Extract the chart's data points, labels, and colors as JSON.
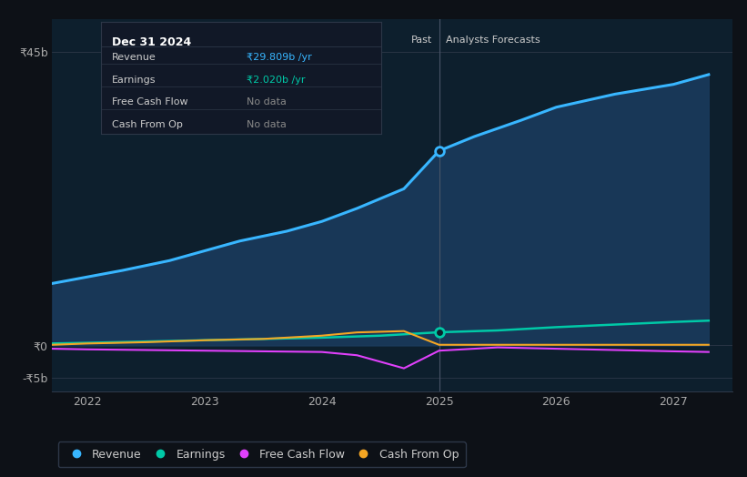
{
  "bg_color": "#0d1117",
  "plot_bg_color": "#0d1f2d",
  "divider_x": 2025.0,
  "past_label": "Past",
  "forecast_label": "Analysts Forecasts",
  "yticks": [
    45,
    0,
    -5
  ],
  "ytick_labels": [
    "₹45b",
    "₹0",
    "-₹5b"
  ],
  "ylim": [
    -7,
    50
  ],
  "xlim": [
    2021.7,
    2027.5
  ],
  "xticks": [
    2022,
    2023,
    2024,
    2025,
    2026,
    2027
  ],
  "revenue": {
    "x": [
      2021.7,
      2022.0,
      2022.3,
      2022.7,
      2023.0,
      2023.3,
      2023.7,
      2024.0,
      2024.3,
      2024.7,
      2025.0,
      2025.3,
      2025.7,
      2026.0,
      2026.5,
      2027.0,
      2027.3
    ],
    "y": [
      9.5,
      10.5,
      11.5,
      13.0,
      14.5,
      16.0,
      17.5,
      19.0,
      21.0,
      24.0,
      29.809,
      32.0,
      34.5,
      36.5,
      38.5,
      40.0,
      41.5
    ],
    "color": "#38b6ff",
    "fill_color": "#1a3a5c",
    "fill_alpha": 0.9,
    "linewidth": 2.2,
    "label": "Revenue",
    "dot_x": 2025.0,
    "dot_y": 29.809
  },
  "earnings": {
    "x": [
      2021.7,
      2022.0,
      2022.5,
      2023.0,
      2023.5,
      2024.0,
      2024.5,
      2025.0,
      2025.5,
      2026.0,
      2026.5,
      2027.0,
      2027.3
    ],
    "y": [
      0.3,
      0.4,
      0.6,
      0.8,
      1.0,
      1.2,
      1.5,
      2.02,
      2.3,
      2.8,
      3.2,
      3.6,
      3.8
    ],
    "color": "#00c9a7",
    "linewidth": 1.8,
    "label": "Earnings",
    "dot_x": 2025.0,
    "dot_y": 2.02
  },
  "free_cash_flow": {
    "x": [
      2021.7,
      2022.0,
      2022.5,
      2023.0,
      2023.5,
      2024.0,
      2024.3,
      2024.7,
      2025.0,
      2025.5,
      2026.0,
      2026.5,
      2027.0,
      2027.3
    ],
    "y": [
      -0.5,
      -0.6,
      -0.7,
      -0.8,
      -0.9,
      -1.0,
      -1.5,
      -3.5,
      -0.8,
      -0.3,
      -0.5,
      -0.7,
      -0.9,
      -1.0
    ],
    "color": "#e040fb",
    "linewidth": 1.5,
    "label": "Free Cash Flow"
  },
  "cash_from_op": {
    "x": [
      2021.7,
      2022.0,
      2022.5,
      2023.0,
      2023.5,
      2024.0,
      2024.3,
      2024.7,
      2025.0,
      2025.5,
      2026.0,
      2026.5,
      2027.0,
      2027.3
    ],
    "y": [
      0.1,
      0.3,
      0.5,
      0.8,
      1.0,
      1.5,
      2.0,
      2.2,
      0.1,
      0.1,
      0.1,
      0.1,
      0.1,
      0.1
    ],
    "color": "#f5a623",
    "linewidth": 1.5,
    "label": "Cash From Op"
  },
  "tooltip": {
    "title": "Dec 31 2024",
    "bg_color": "#111827",
    "border_color": "#2d3748",
    "rows": [
      {
        "label": "Revenue",
        "value": "₹29.809b /yr",
        "value_color": "#38b6ff"
      },
      {
        "label": "Earnings",
        "value": "₹2.020b /yr",
        "value_color": "#00c9a7"
      },
      {
        "label": "Free Cash Flow",
        "value": "No data",
        "value_color": "#888888"
      },
      {
        "label": "Cash From Op",
        "value": "No data",
        "value_color": "#888888"
      }
    ]
  }
}
